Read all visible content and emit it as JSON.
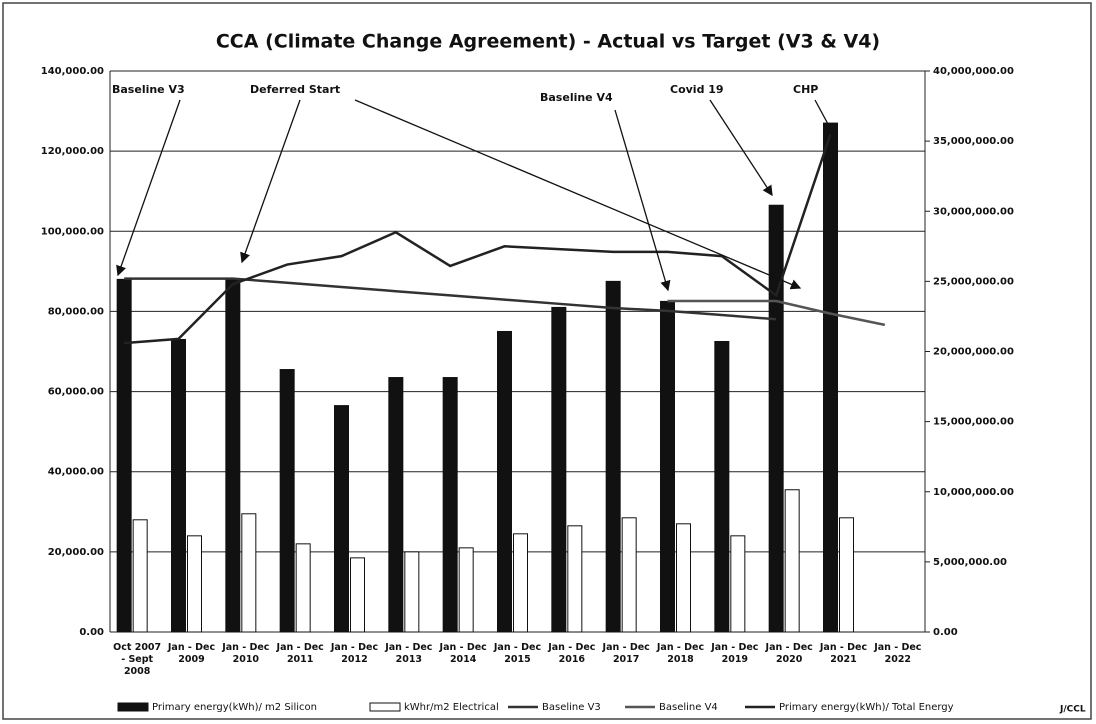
{
  "chart_data": {
    "type": "bar",
    "title": "CCA (Climate Change Agreement) - Actual vs Target (V3 & V4)",
    "categories": [
      "Oct 2007 - Sept 2008",
      "Jan - Dec 2009",
      "Jan - Dec 2010",
      "Jan - Dec 2011",
      "Jan - Dec 2012",
      "Jan - Dec 2013",
      "Jan - Dec 2014",
      "Jan - Dec 2015",
      "Jan - Dec 2016",
      "Jan - Dec 2017",
      "Jan - Dec 2018",
      "Jan - Dec 2019",
      "Jan - Dec 2020",
      "Jan - Dec 2021",
      "Jan - Dec 2022"
    ],
    "series": [
      {
        "name": "Primary energy(kWh)/ m2 Silicon",
        "type": "bar",
        "color": "#111111",
        "axis": "y",
        "values": [
          88000,
          73000,
          88000,
          65500,
          56500,
          63500,
          63500,
          75000,
          81000,
          87500,
          82500,
          72500,
          106500,
          127000,
          null
        ]
      },
      {
        "name": "kWhr/m2 Electrical",
        "type": "bar",
        "color": "#ffffff",
        "axis": "y",
        "values": [
          28000,
          24000,
          29500,
          22000,
          18500,
          20000,
          21000,
          24500,
          26500,
          28500,
          27000,
          24000,
          35500,
          28500,
          null
        ]
      },
      {
        "name": "Baseline V3",
        "type": "line",
        "color": "#333333",
        "axis": "y2",
        "values": [
          25200000,
          25200000,
          25200000,
          24900000,
          24600000,
          24300000,
          24000000,
          23700000,
          23400000,
          23100000,
          22900000,
          22600000,
          22300000,
          null,
          null
        ]
      },
      {
        "name": "Baseline V4",
        "type": "line",
        "color": "#555555",
        "axis": "y2",
        "values": [
          null,
          null,
          null,
          null,
          null,
          null,
          null,
          null,
          null,
          null,
          23600000,
          23600000,
          23600000,
          22700000,
          21900000
        ]
      },
      {
        "name": "Primary energy(kWh)/ Total Energy",
        "type": "line",
        "color": "#222222",
        "axis": "y2",
        "values": [
          20600000,
          20900000,
          24800000,
          26200000,
          26800000,
          28500000,
          26100000,
          27500000,
          27300000,
          27100000,
          27100000,
          26800000,
          24000000,
          35500000,
          null
        ]
      }
    ],
    "ylim": [
      0,
      140000
    ],
    "yticks": [
      {
        "value": 0,
        "label": "0.00"
      },
      {
        "value": 20000,
        "label": "20,000.00"
      },
      {
        "value": 40000,
        "label": "40,000.00"
      },
      {
        "value": 60000,
        "label": "60,000.00"
      },
      {
        "value": 80000,
        "label": "80,000.00"
      },
      {
        "value": 100000,
        "label": "100,000.00"
      },
      {
        "value": 120000,
        "label": "120,000.00"
      },
      {
        "value": 140000,
        "label": "140,000.00"
      }
    ],
    "y2lim": [
      0,
      40000000
    ],
    "y2ticks": [
      {
        "value": 0,
        "label": "0.00"
      },
      {
        "value": 5000000,
        "label": "5,000,000.00"
      },
      {
        "value": 10000000,
        "label": "10,000,000.00"
      },
      {
        "value": 15000000,
        "label": "15,000,000.00"
      },
      {
        "value": 20000000,
        "label": "20,000,000.00"
      },
      {
        "value": 25000000,
        "label": "25,000,000.00"
      },
      {
        "value": 30000000,
        "label": "30,000,000.00"
      },
      {
        "value": 35000000,
        "label": "35,000,000.00"
      },
      {
        "value": 40000000,
        "label": "40,000,000.00"
      }
    ],
    "grid": true,
    "legend": "bottom",
    "annotations": [
      "Baseline V3",
      "Deferred Start",
      "Baseline V4",
      "Covid 19",
      "CHP"
    ],
    "footer": "J/CCL"
  }
}
